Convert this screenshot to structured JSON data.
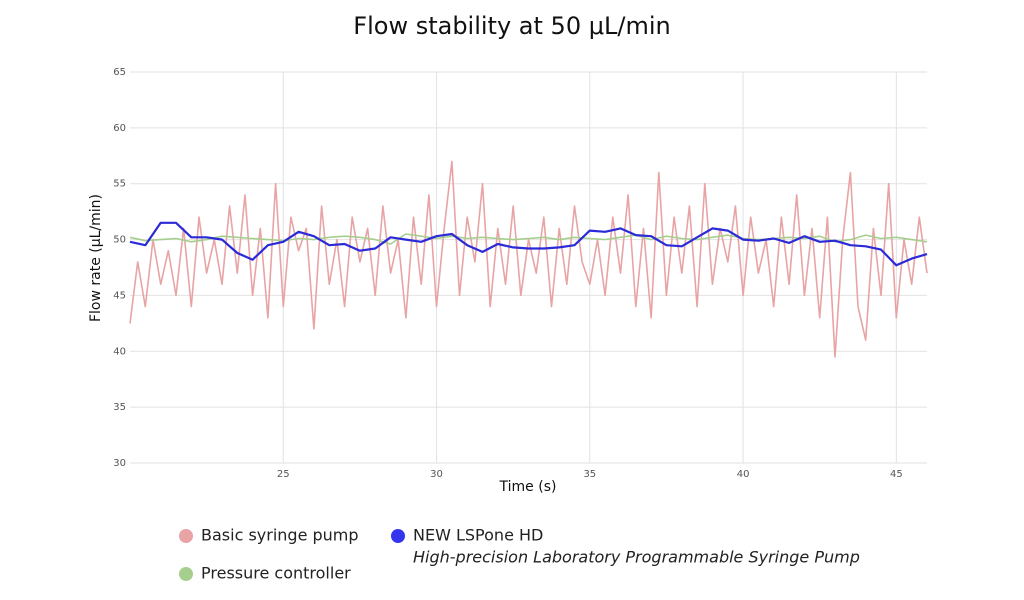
{
  "chart_data": {
    "type": "line",
    "title": "Flow stability at 50 μL/min",
    "xlabel": "Time (s)",
    "ylabel": "Flow rate (μL/min)",
    "xlim": [
      20,
      46
    ],
    "ylim": [
      30,
      65
    ],
    "xticks": [
      25,
      30,
      35,
      40,
      45
    ],
    "yticks": [
      30,
      35,
      40,
      45,
      50,
      55,
      60,
      65
    ],
    "grid": true,
    "series": [
      {
        "name": "Basic syringe pump",
        "color": "#e8a4a4",
        "x": [
          20,
          20.25,
          20.5,
          20.75,
          21,
          21.25,
          21.5,
          21.75,
          22,
          22.25,
          22.5,
          22.75,
          23,
          23.25,
          23.5,
          23.75,
          24,
          24.25,
          24.5,
          24.75,
          25,
          25.25,
          25.5,
          25.75,
          26,
          26.25,
          26.5,
          26.75,
          27,
          27.25,
          27.5,
          27.75,
          28,
          28.25,
          28.5,
          28.75,
          29,
          29.25,
          29.5,
          29.75,
          30,
          30.25,
          30.5,
          30.75,
          31,
          31.25,
          31.5,
          31.75,
          32,
          32.25,
          32.5,
          32.75,
          33,
          33.25,
          33.5,
          33.75,
          34,
          34.25,
          34.5,
          34.75,
          35,
          35.25,
          35.5,
          35.75,
          36,
          36.25,
          36.5,
          36.75,
          37,
          37.25,
          37.5,
          37.75,
          38,
          38.25,
          38.5,
          38.75,
          39,
          39.25,
          39.5,
          39.75,
          40,
          40.25,
          40.5,
          40.75,
          41,
          41.25,
          41.5,
          41.75,
          42,
          42.25,
          42.5,
          42.75,
          43,
          43.25,
          43.5,
          43.75,
          44,
          44.25,
          44.5,
          44.75,
          45,
          45.25,
          45.5,
          45.75,
          46
        ],
        "values": [
          42.5,
          48,
          44,
          50,
          46,
          49,
          45,
          51,
          44,
          52,
          47,
          50,
          46,
          53,
          47,
          54,
          45,
          51,
          43,
          55,
          44,
          52,
          49,
          51,
          42,
          53,
          46,
          50,
          44,
          52,
          48,
          51,
          45,
          53,
          47,
          50,
          43,
          52,
          46,
          54,
          44,
          51,
          57,
          45,
          52,
          48,
          55,
          44,
          51,
          46,
          53,
          45,
          50,
          47,
          52,
          44,
          51,
          46,
          53,
          48,
          46,
          50,
          45,
          52,
          47,
          54,
          44,
          51,
          43,
          56,
          45,
          52,
          47,
          53,
          44,
          55,
          46,
          51,
          48,
          53,
          45,
          52,
          47,
          50,
          44,
          52,
          46,
          54,
          45,
          51,
          43,
          52,
          39.5,
          50,
          56,
          44,
          41,
          51,
          45,
          55,
          43,
          50,
          46,
          52,
          47
        ]
      },
      {
        "name": "Pressure controller",
        "color": "#a6cf8e",
        "x": [
          20,
          20.5,
          21,
          21.5,
          22,
          22.5,
          23,
          23.5,
          24,
          24.5,
          25,
          25.5,
          26,
          26.5,
          27,
          27.5,
          28,
          28.5,
          29,
          29.5,
          30,
          30.5,
          31,
          31.5,
          32,
          32.5,
          33,
          33.5,
          34,
          34.5,
          35,
          35.5,
          36,
          36.5,
          37,
          37.5,
          38,
          38.5,
          39,
          39.5,
          40,
          40.5,
          41,
          41.5,
          42,
          42.5,
          43,
          43.5,
          44,
          44.5,
          45,
          45.5,
          46
        ],
        "values": [
          50.2,
          49.9,
          50,
          50.1,
          49.8,
          50,
          50.3,
          50.2,
          50.1,
          50,
          49.9,
          50.1,
          50,
          50.2,
          50.3,
          50.2,
          50,
          49.6,
          50.5,
          50.3,
          50.1,
          50.3,
          50.1,
          50.2,
          50.1,
          50,
          50.1,
          50.2,
          50,
          50.2,
          50.1,
          50,
          50.2,
          50.4,
          50,
          50.3,
          50.1,
          50,
          50.2,
          50.4,
          50.1,
          50,
          50.1,
          50.2,
          50.1,
          50.3,
          49.8,
          50,
          50.4,
          50.1,
          50.2,
          50,
          49.8
        ]
      },
      {
        "name": "NEW LSPone HD",
        "description": "High-precision Laboratory Programmable Syringe Pump",
        "color": "#2a2ad8",
        "x": [
          20,
          20.5,
          21,
          21.5,
          22,
          22.5,
          23,
          23.5,
          24,
          24.5,
          25,
          25.5,
          26,
          26.5,
          27,
          27.5,
          28,
          28.5,
          29,
          29.5,
          30,
          30.5,
          31,
          31.5,
          32,
          32.5,
          33,
          33.5,
          34,
          34.5,
          35,
          35.5,
          36,
          36.5,
          37,
          37.5,
          38,
          38.5,
          39,
          39.5,
          40,
          40.5,
          41,
          41.5,
          42,
          42.5,
          43,
          43.5,
          44,
          44.5,
          45,
          45.5,
          46
        ],
        "values": [
          49.8,
          49.5,
          51.5,
          51.5,
          50.2,
          50.2,
          50,
          48.8,
          48.2,
          49.5,
          49.8,
          50.7,
          50.3,
          49.5,
          49.6,
          49,
          49.2,
          50.2,
          50,
          49.8,
          50.3,
          50.5,
          49.5,
          48.9,
          49.6,
          49.3,
          49.2,
          49.2,
          49.3,
          49.5,
          50.8,
          50.7,
          51,
          50.4,
          50.3,
          49.5,
          49.4,
          50.2,
          51,
          50.8,
          50,
          49.9,
          50.1,
          49.7,
          50.3,
          49.8,
          49.9,
          49.5,
          49.4,
          49.1,
          47.7,
          48.3,
          48.7
        ]
      }
    ]
  }
}
